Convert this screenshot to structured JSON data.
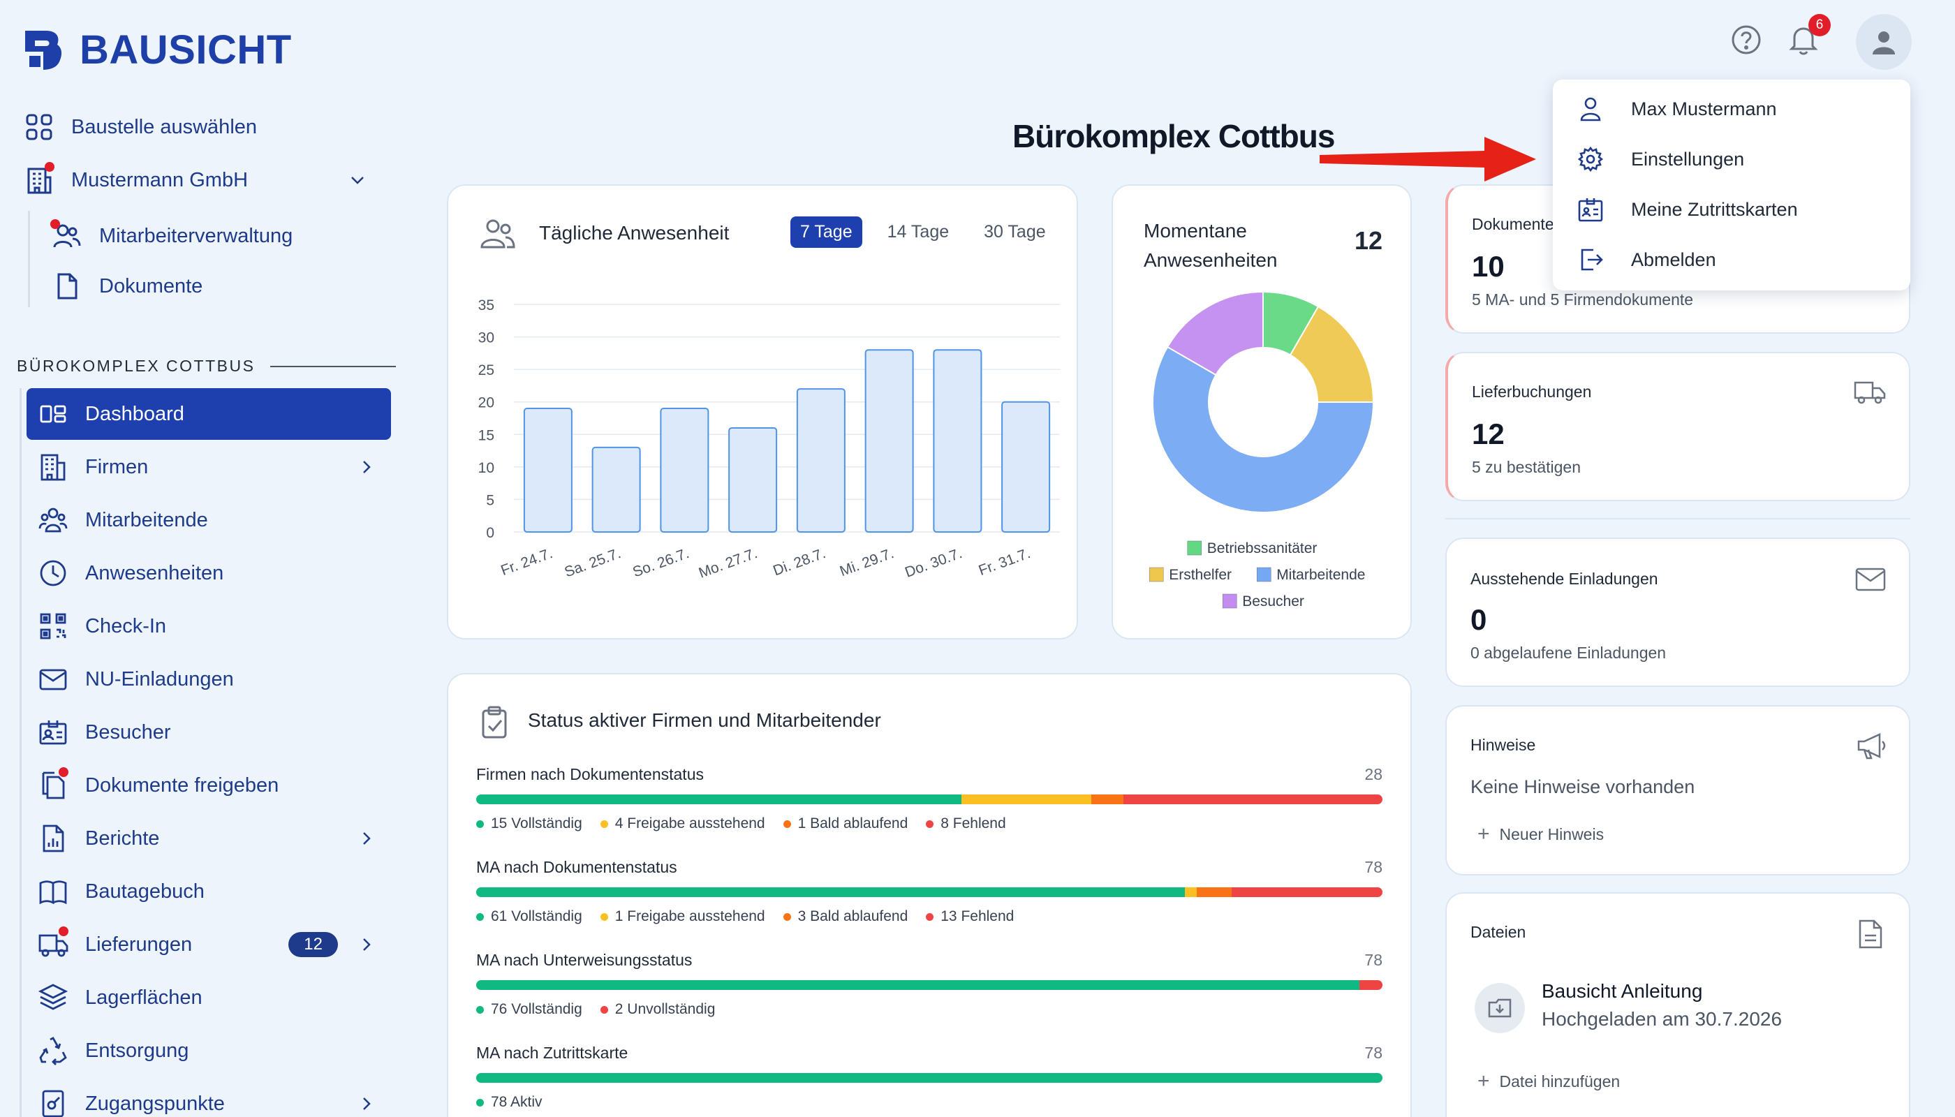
{
  "brand": {
    "name": "BAUSICHT"
  },
  "header": {
    "help_icon": "help-circle-icon",
    "notification_count": "6",
    "annotation_title": "Bürokomplex Cottbus"
  },
  "user_menu": {
    "items": [
      {
        "label": "Max Mustermann",
        "icon": "user-icon"
      },
      {
        "label": "Einstellungen",
        "icon": "gear-icon"
      },
      {
        "label": "Meine Zutrittskarten",
        "icon": "id-card-icon"
      },
      {
        "label": "Abmelden",
        "icon": "logout-icon"
      }
    ]
  },
  "sidebar": {
    "top": [
      {
        "label": "Baustelle auswählen"
      },
      {
        "label": "Mustermann GmbH"
      }
    ],
    "company_sub": [
      {
        "label": "Mitarbeiterverwaltung"
      },
      {
        "label": "Dokumente"
      }
    ],
    "section_title": "BÜROKOMPLEX COTTBUS",
    "items": [
      {
        "label": "Dashboard"
      },
      {
        "label": "Firmen"
      },
      {
        "label": "Mitarbeitende"
      },
      {
        "label": "Anwesenheiten"
      },
      {
        "label": "Check-In"
      },
      {
        "label": "NU-Einladungen"
      },
      {
        "label": "Besucher"
      },
      {
        "label": "Dokumente freigeben"
      },
      {
        "label": "Berichte"
      },
      {
        "label": "Bautagebuch"
      },
      {
        "label": "Lieferungen",
        "badge": "12"
      },
      {
        "label": "Lagerflächen"
      },
      {
        "label": "Entsorgung"
      },
      {
        "label": "Zugangspunkte"
      }
    ]
  },
  "attendance": {
    "title": "Tägliche Anwesenheit",
    "tabs": [
      "7 Tage",
      "14 Tage",
      "30 Tage"
    ],
    "active_tab": "7 Tage"
  },
  "chart_data": [
    {
      "type": "bar",
      "categories": [
        "Fr. 24.7.",
        "Sa. 25.7.",
        "So. 26.7.",
        "Mo. 27.7.",
        "Di. 28.7.",
        "Mi. 29.7.",
        "Do. 30.7.",
        "Fr. 31.7."
      ],
      "values": [
        19,
        13,
        19,
        16,
        22,
        28,
        28,
        20
      ],
      "yticks": [
        "0",
        "5",
        "10",
        "15",
        "20",
        "25",
        "30",
        "35"
      ],
      "ylim": [
        0,
        35
      ],
      "grid": true
    },
    {
      "type": "pie",
      "donut": true,
      "labels": [
        "Betriebssanitäter",
        "Ersthelfer",
        "Mitarbeitende",
        "Besucher"
      ],
      "values": [
        1,
        2,
        7,
        2
      ],
      "colors": [
        "#63d882",
        "#efc74d",
        "#74a8f3",
        "#c38cf0"
      ],
      "legend": "bottom"
    }
  ],
  "current_presence": {
    "title_line1": "Momentane",
    "title_line2": "Anwesenheiten",
    "value": "12"
  },
  "status": {
    "title": "Status aktiver Firmen und Mitarbeitender",
    "rows": [
      {
        "label": "Firmen nach Dokumentenstatus",
        "total": "28",
        "segments": [
          {
            "value": 15,
            "color": "#10b981",
            "text": "15 Vollständig"
          },
          {
            "value": 4,
            "color": "#fbbf24",
            "text": "4 Freigabe ausstehend"
          },
          {
            "value": 1,
            "color": "#f97316",
            "text": "1 Bald ablaufend"
          },
          {
            "value": 8,
            "color": "#ef4444",
            "text": "8 Fehlend"
          }
        ]
      },
      {
        "label": "MA nach Dokumentenstatus",
        "total": "78",
        "segments": [
          {
            "value": 61,
            "color": "#10b981",
            "text": "61 Vollständig"
          },
          {
            "value": 1,
            "color": "#fbbf24",
            "text": "1 Freigabe ausstehend"
          },
          {
            "value": 3,
            "color": "#f97316",
            "text": "3 Bald ablaufend"
          },
          {
            "value": 13,
            "color": "#ef4444",
            "text": "13 Fehlend"
          }
        ]
      },
      {
        "label": "MA nach Unterweisungsstatus",
        "total": "78",
        "segments": [
          {
            "value": 76,
            "color": "#10b981",
            "text": "76 Vollständig"
          },
          {
            "value": 2,
            "color": "#ef4444",
            "text": "2 Unvollständig"
          }
        ]
      },
      {
        "label": "MA nach Zutrittskarte",
        "total": "78",
        "segments": [
          {
            "value": 78,
            "color": "#10b981",
            "text": "78 Aktiv"
          }
        ]
      }
    ]
  },
  "stats": {
    "documents": {
      "title": "Dokumente",
      "value": "10",
      "sub": "5 MA- und 5 Firmendokumente"
    },
    "deliveries": {
      "title": "Lieferbuchungen",
      "value": "12",
      "sub": "5 zu bestätigen"
    },
    "invitations": {
      "title": "Ausstehende Einladungen",
      "value": "0",
      "sub": "0 abgelaufene Einladungen"
    },
    "notes": {
      "title": "Hinweise",
      "empty": "Keine Hinweise vorhanden",
      "add": "Neuer Hinweis"
    },
    "files": {
      "title": "Dateien",
      "file_name": "Bausicht Anleitung",
      "file_date": "Hochgeladen am 30.7.2026",
      "add": "Datei hinzufügen"
    }
  }
}
